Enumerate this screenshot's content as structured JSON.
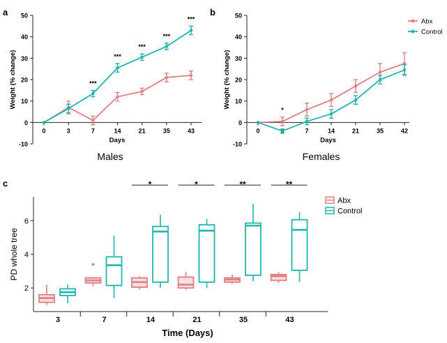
{
  "colors": {
    "abx": "#e07f84",
    "control": "#1fb5b0",
    "axis": "#222222"
  },
  "chart_data": [
    {
      "panel": "a",
      "type": "line",
      "title": "Males",
      "xlabel": "Days",
      "ylabel": "Weight (% change)",
      "categories": [
        "0",
        "3",
        "7",
        "14",
        "21",
        "35",
        "43"
      ],
      "ylim": [
        -10,
        50
      ],
      "yticks": [
        -10,
        0,
        10,
        20,
        30,
        40,
        50
      ],
      "grid": false,
      "series": [
        {
          "name": "Abx",
          "values": [
            0,
            7,
            1,
            12,
            14.5,
            21,
            22
          ],
          "errors": [
            0,
            3,
            2,
            2,
            1.5,
            2,
            2
          ]
        },
        {
          "name": "Control",
          "values": [
            0,
            6.5,
            13.5,
            25.5,
            30.5,
            35.5,
            43
          ],
          "errors": [
            0,
            2,
            1.5,
            2,
            1.5,
            1.5,
            2
          ]
        }
      ],
      "annotations": [
        "",
        "",
        "***",
        "***",
        "***",
        "***",
        "***"
      ]
    },
    {
      "panel": "b",
      "type": "line",
      "title": "Females",
      "xlabel": "Days",
      "ylabel": "Weight (% change)",
      "categories": [
        "0",
        "3",
        "7",
        "14",
        "21",
        "35",
        "42"
      ],
      "ylim": [
        -10,
        50
      ],
      "yticks": [
        -10,
        0,
        10,
        20,
        30,
        40,
        50
      ],
      "grid": false,
      "legend": {
        "position": "top-right",
        "entries": [
          "Abx",
          "Control"
        ]
      },
      "series": [
        {
          "name": "Abx",
          "values": [
            0,
            0.5,
            6,
            10.5,
            17,
            23.5,
            27.5
          ],
          "errors": [
            0,
            2,
            3,
            3,
            3,
            4,
            5
          ]
        },
        {
          "name": "Control",
          "values": [
            0,
            -4,
            0.5,
            4,
            10.5,
            20,
            24.5
          ],
          "errors": [
            0,
            1,
            1.5,
            2,
            2,
            2,
            2.5
          ]
        }
      ],
      "annotations": [
        "",
        "*",
        "",
        "",
        "",
        "",
        ""
      ]
    },
    {
      "panel": "c",
      "type": "box",
      "xlabel": "Time (Days)",
      "ylabel": "PD whole tree",
      "categories": [
        "3",
        "7",
        "14",
        "21",
        "35",
        "43"
      ],
      "ylim": [
        0.6,
        7.4
      ],
      "yticks": [
        2,
        4,
        6
      ],
      "grid": false,
      "legend": {
        "position": "top-right",
        "entries": [
          "Abx",
          "Control"
        ]
      },
      "series": [
        {
          "name": "Abx",
          "boxes": [
            {
              "min": 1.0,
              "q1": 1.15,
              "median": 1.4,
              "q3": 1.6,
              "max": 2.2
            },
            {
              "min": 2.1,
              "q1": 2.3,
              "median": 2.45,
              "q3": 2.6,
              "max": 2.6,
              "outliers": [
                3.4
              ]
            },
            {
              "min": 1.9,
              "q1": 2.05,
              "median": 2.35,
              "q3": 2.6,
              "max": 2.7
            },
            {
              "min": 1.9,
              "q1": 2.0,
              "median": 2.2,
              "q3": 2.65,
              "max": 2.95
            },
            {
              "min": 2.25,
              "q1": 2.35,
              "median": 2.5,
              "q3": 2.6,
              "max": 2.8
            },
            {
              "min": 2.3,
              "q1": 2.45,
              "median": 2.7,
              "q3": 2.8,
              "max": 2.95
            }
          ]
        },
        {
          "name": "Control",
          "boxes": [
            {
              "min": 1.1,
              "q1": 1.55,
              "median": 1.75,
              "q3": 1.95,
              "max": 2.2
            },
            {
              "min": 1.4,
              "q1": 2.15,
              "median": 3.35,
              "q3": 3.85,
              "max": 5.1
            },
            {
              "min": 2.0,
              "q1": 2.35,
              "median": 5.35,
              "q3": 5.65,
              "max": 6.35
            },
            {
              "min": 2.0,
              "q1": 2.35,
              "median": 5.4,
              "q3": 5.75,
              "max": 6.1
            },
            {
              "min": 2.4,
              "q1": 2.75,
              "median": 5.7,
              "q3": 5.85,
              "max": 7.0
            },
            {
              "min": 2.35,
              "q1": 3.05,
              "median": 5.45,
              "q3": 6.05,
              "max": 6.5
            }
          ]
        }
      ],
      "significance": [
        "",
        "",
        "*",
        "*",
        "**",
        "**"
      ]
    }
  ]
}
